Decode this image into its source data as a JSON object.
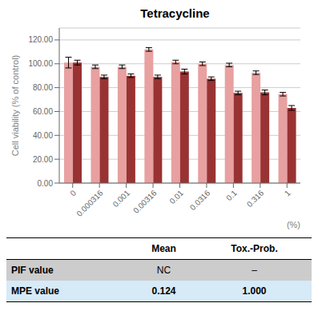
{
  "chart_data": {
    "type": "bar",
    "title": "Tetracycline",
    "xlabel": "(%)",
    "ylabel": "Cell viability (% of control)",
    "categories": [
      "0",
      "0.000316",
      "0.001",
      "0.00316",
      "0.01",
      "0.0316",
      "0.1",
      "0.316",
      "1"
    ],
    "series": [
      {
        "color": "#E8A0A0",
        "values": [
          101.0,
          97.5,
          97.5,
          112.0,
          101.5,
          100.0,
          99.0,
          92.5,
          74.5
        ],
        "errors": [
          4.5,
          1.5,
          1.5,
          1.5,
          1.5,
          1.5,
          1.5,
          1.5,
          1.5
        ]
      },
      {
        "color": "#993333",
        "values": [
          101.0,
          89.0,
          90.0,
          89.0,
          93.5,
          87.5,
          75.5,
          76.0,
          63.0
        ],
        "errors": [
          2.0,
          1.5,
          1.5,
          1.5,
          2.0,
          1.5,
          1.5,
          2.0,
          2.0
        ]
      }
    ],
    "ylim": [
      0,
      130
    ],
    "yticks": [
      {
        "value": 0,
        "label": "0.00"
      },
      {
        "value": 20,
        "label": "20.00"
      },
      {
        "value": 40,
        "label": "40.00"
      },
      {
        "value": 60,
        "label": "60.00"
      },
      {
        "value": 80,
        "label": "80.00"
      },
      {
        "value": 100,
        "label": "100.00"
      },
      {
        "value": 120,
        "label": "120.00"
      }
    ],
    "grid": true,
    "table": {
      "columns": [
        "Mean",
        "Tox.-Prob."
      ],
      "rows": [
        {
          "label": "PIF value",
          "cells": [
            "NC",
            "–"
          ],
          "color": "#CCCCCC"
        },
        {
          "label": "MPE value",
          "cells": [
            "0.124",
            "1.000"
          ],
          "color": "#D6EAF8"
        }
      ]
    }
  }
}
